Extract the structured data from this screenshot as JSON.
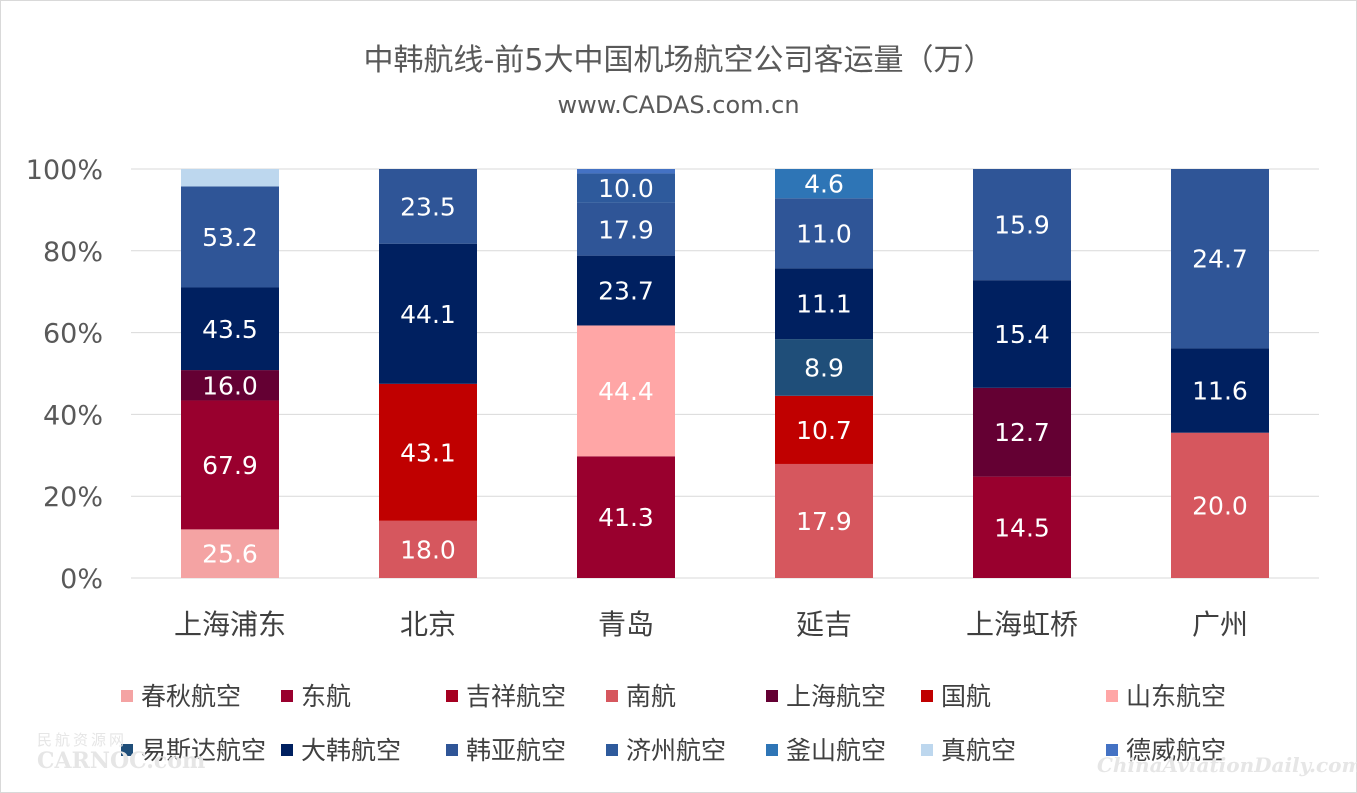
{
  "title": "中韩航线-前5大中国机场航空公司客运量（万）",
  "subtitle": "www.CADAS.com.cn",
  "watermarks": {
    "left_top": "民航资源网",
    "left": "CARNOC.com",
    "right": "ChinaAviationDaily.com"
  },
  "colors": {
    "春秋航空": "#f4a3a3",
    "东航": "#99002e",
    "吉祥航空": "#a50021",
    "南航": "#d6575e",
    "上海航空": "#640033",
    "国航": "#c00000",
    "山东航空": "#ffa6a6",
    "易斯达航空": "#1f4e79",
    "大韩航空": "#002060",
    "韩亚航空": "#2f5597",
    "济州航空": "#2e5a9c",
    "釜山航空": "#2e75b6",
    "真航空": "#bdd7ee",
    "德威航空": "#4472c4"
  },
  "chart_data": {
    "type": "bar",
    "stacked": "percent",
    "title": "中韩航线-前5大中国机场航空公司客运量（万）",
    "subtitle": "www.CADAS.com.cn",
    "categories": [
      "上海浦东",
      "北京",
      "青岛",
      "延吉",
      "上海虹桥",
      "广州"
    ],
    "yticks": [
      "0%",
      "20%",
      "40%",
      "60%",
      "80%",
      "100%"
    ],
    "ylim": [
      0,
      100
    ],
    "grid": true,
    "legend_position": "bottom",
    "legend": [
      "春秋航空",
      "东航",
      "吉祥航空",
      "南航",
      "上海航空",
      "国航",
      "山东航空",
      "易斯达航空",
      "大韩航空",
      "韩亚航空",
      "济州航空",
      "釜山航空",
      "真航空",
      "德威航空"
    ],
    "bars": [
      {
        "category": "上海浦东",
        "segments": [
          {
            "series": "春秋航空",
            "value": 25.6,
            "label": "25.6"
          },
          {
            "series": "东航",
            "value": 67.9,
            "label": "67.9"
          },
          {
            "series": "上海航空",
            "value": 16.0,
            "label": "16.0"
          },
          {
            "series": "大韩航空",
            "value": 43.5,
            "label": "43.5"
          },
          {
            "series": "韩亚航空",
            "value": 53.2,
            "label": "53.2"
          },
          {
            "series": "真航空",
            "value": 9.2,
            "label": ""
          }
        ]
      },
      {
        "category": "北京",
        "segments": [
          {
            "series": "南航",
            "value": 18.0,
            "label": "18.0"
          },
          {
            "series": "国航",
            "value": 43.1,
            "label": "43.1"
          },
          {
            "series": "大韩航空",
            "value": 44.1,
            "label": "44.1"
          },
          {
            "series": "韩亚航空",
            "value": 23.5,
            "label": "23.5"
          }
        ]
      },
      {
        "category": "青岛",
        "segments": [
          {
            "series": "东航",
            "value": 41.3,
            "label": "41.3"
          },
          {
            "series": "山东航空",
            "value": 44.4,
            "label": "44.4"
          },
          {
            "series": "大韩航空",
            "value": 23.7,
            "label": "23.7"
          },
          {
            "series": "韩亚航空",
            "value": 17.9,
            "label": "17.9"
          },
          {
            "series": "济州航空",
            "value": 10.0,
            "label": "10.0"
          },
          {
            "series": "德威航空",
            "value": 1.5,
            "label": ""
          }
        ]
      },
      {
        "category": "延吉",
        "segments": [
          {
            "series": "南航",
            "value": 17.9,
            "label": "17.9"
          },
          {
            "series": "国航",
            "value": 10.7,
            "label": "10.7"
          },
          {
            "series": "易斯达航空",
            "value": 8.9,
            "label": "8.9"
          },
          {
            "series": "大韩航空",
            "value": 11.1,
            "label": "11.1"
          },
          {
            "series": "韩亚航空",
            "value": 11.0,
            "label": "11.0"
          },
          {
            "series": "釜山航空",
            "value": 4.6,
            "label": "4.6"
          }
        ]
      },
      {
        "category": "上海虹桥",
        "segments": [
          {
            "series": "东航",
            "value": 14.5,
            "label": "14.5"
          },
          {
            "series": "上海航空",
            "value": 12.7,
            "label": "12.7"
          },
          {
            "series": "大韩航空",
            "value": 15.4,
            "label": "15.4"
          },
          {
            "series": "韩亚航空",
            "value": 15.9,
            "label": "15.9"
          }
        ]
      },
      {
        "category": "广州",
        "segments": [
          {
            "series": "南航",
            "value": 20.0,
            "label": "20.0"
          },
          {
            "series": "大韩航空",
            "value": 11.6,
            "label": "11.6"
          },
          {
            "series": "韩亚航空",
            "value": 24.7,
            "label": "24.7"
          }
        ]
      }
    ]
  }
}
